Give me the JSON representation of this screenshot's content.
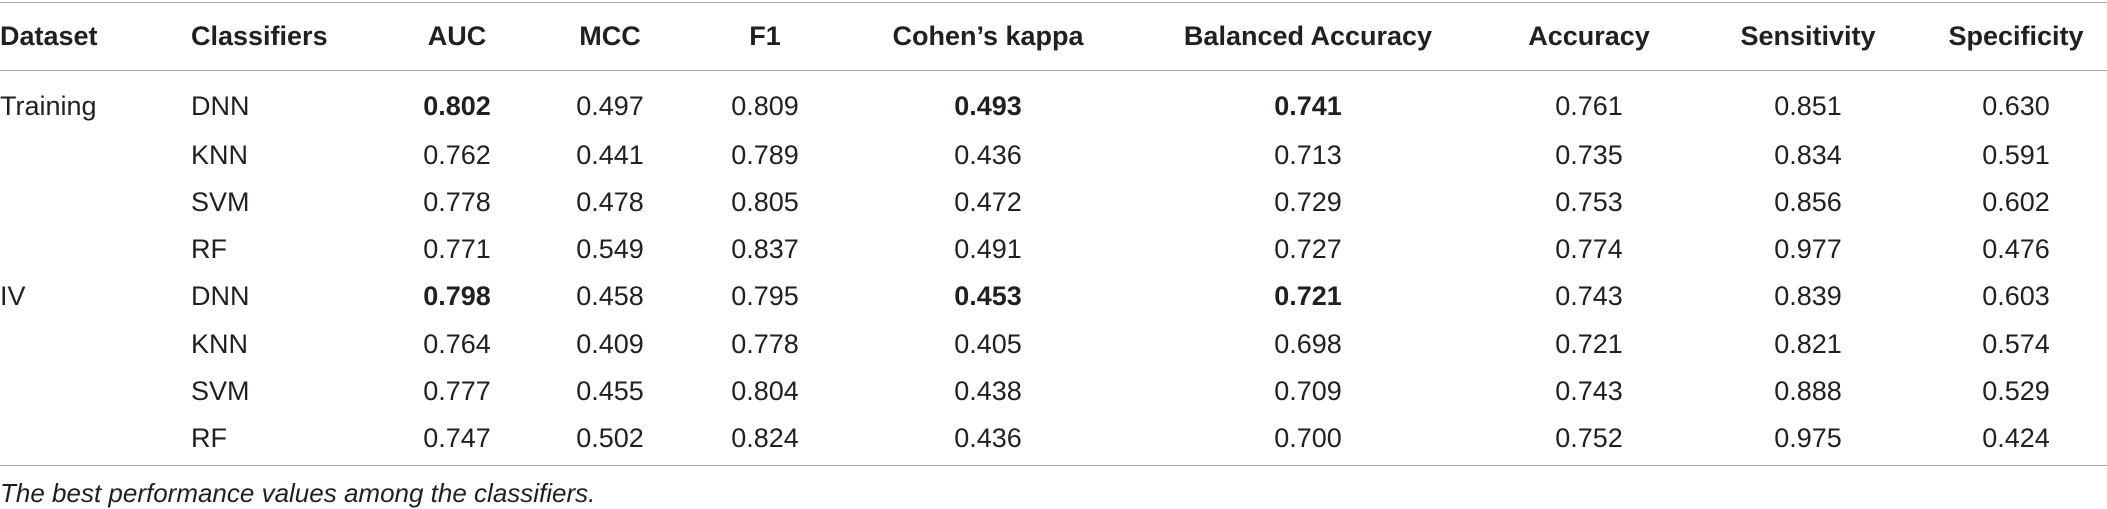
{
  "table": {
    "headers": [
      "Dataset",
      "Classifiers",
      "AUC",
      "MCC",
      "F1",
      "Cohen’s kappa",
      "Balanced Accuracy",
      "Accuracy",
      "Sensitivity",
      "Specificity"
    ],
    "rows": [
      [
        "Training",
        "DNN",
        {
          "text": "0.802",
          "bold": true
        },
        "0.497",
        "0.809",
        {
          "text": "0.493",
          "bold": true
        },
        {
          "text": "0.741",
          "bold": true
        },
        "0.761",
        "0.851",
        "0.630"
      ],
      [
        null,
        "KNN",
        "0.762",
        "0.441",
        "0.789",
        "0.436",
        "0.713",
        "0.735",
        "0.834",
        "0.591"
      ],
      [
        null,
        "SVM",
        "0.778",
        "0.478",
        "0.805",
        "0.472",
        "0.729",
        "0.753",
        "0.856",
        "0.602"
      ],
      [
        null,
        "RF",
        "0.771",
        "0.549",
        "0.837",
        "0.491",
        "0.727",
        "0.774",
        "0.977",
        "0.476"
      ],
      [
        "IV",
        "DNN",
        {
          "text": "0.798",
          "bold": true
        },
        "0.458",
        "0.795",
        {
          "text": "0.453",
          "bold": true
        },
        {
          "text": "0.721",
          "bold": true
        },
        "0.743",
        "0.839",
        "0.603"
      ],
      [
        null,
        "KNN",
        "0.764",
        "0.409",
        "0.778",
        "0.405",
        "0.698",
        "0.721",
        "0.821",
        "0.574"
      ],
      [
        null,
        "SVM",
        "0.777",
        "0.455",
        "0.804",
        "0.438",
        "0.709",
        "0.743",
        "0.888",
        "0.529"
      ],
      [
        null,
        "RF",
        "0.747",
        "0.502",
        "0.824",
        "0.436",
        "0.700",
        "0.752",
        "0.975",
        "0.424"
      ]
    ],
    "footnote": "The best performance values among the classifiers."
  }
}
